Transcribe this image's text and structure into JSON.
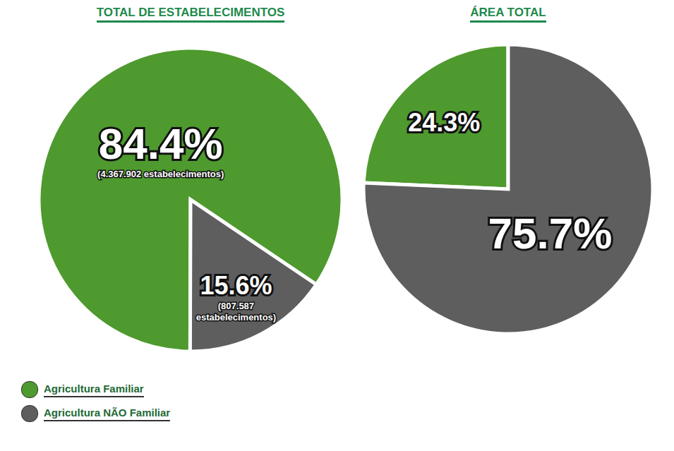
{
  "chart_data": [
    {
      "type": "pie",
      "title": "TOTAL DE ESTABELECIMENTOS",
      "categories": [
        "Agricultura Familiar",
        "Agricultura NÃO Familiar"
      ],
      "values": [
        84.4,
        15.6
      ],
      "value_labels": [
        "84.4%",
        "15.6%"
      ],
      "count_labels": [
        "(4.367.902 estabelecimentos)",
        "(807.587 estabelecimentos)"
      ],
      "colors": [
        "#4e9a2e",
        "#5e5e5e"
      ],
      "data_labels": true,
      "legend": "bottom left"
    },
    {
      "type": "pie",
      "title": "ÁREA TOTAL",
      "categories": [
        "Agricultura Familiar",
        "Agricultura NÃO Familiar"
      ],
      "values": [
        24.3,
        75.7
      ],
      "value_labels": [
        "24.3%",
        "75.7%"
      ],
      "colors": [
        "#4e9a2e",
        "#5e5e5e"
      ],
      "data_labels": true
    }
  ]
}
